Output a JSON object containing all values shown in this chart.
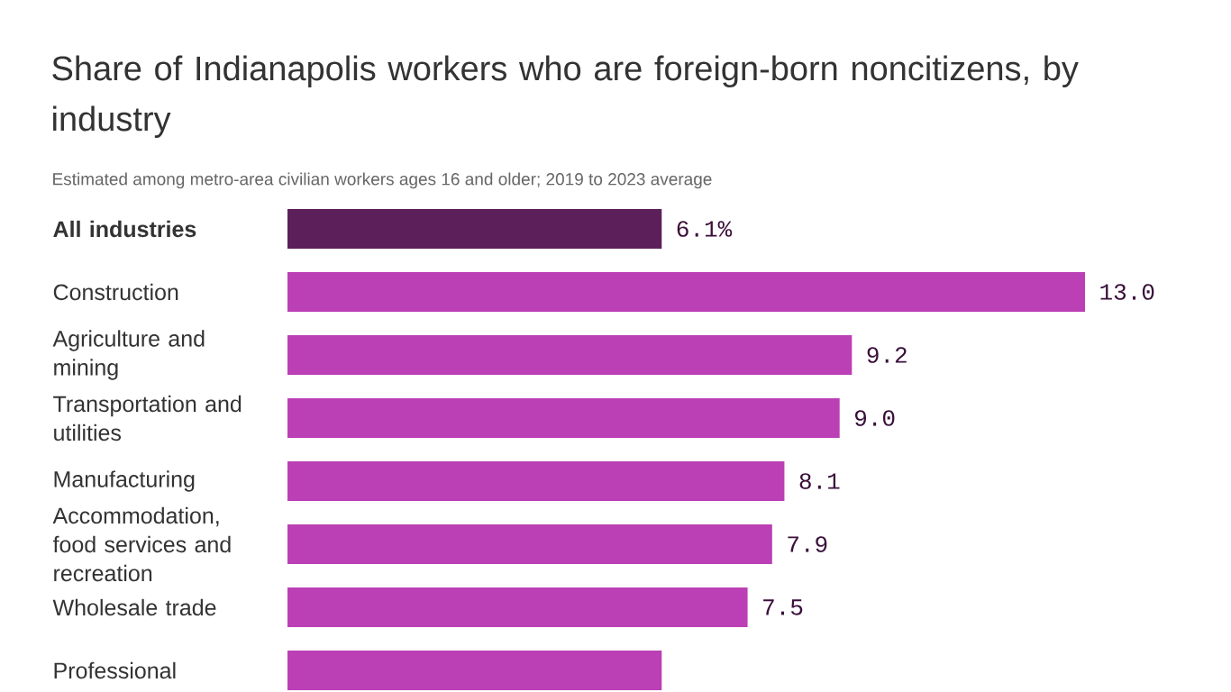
{
  "chart_data": {
    "type": "bar",
    "orientation": "horizontal",
    "title": "Share of Indianapolis workers who are foreign-born noncitizens, by industry",
    "subtitle": "Estimated among metro-area civilian workers ages 16 and older; 2019 to 2023 average",
    "categories": [
      "All industries",
      "Construction",
      "Agriculture and mining",
      "Transportation and utilities",
      "Manufacturing",
      "Accommodation, food services and recreation",
      "Wholesale trade",
      "Professional"
    ],
    "values": [
      6.1,
      13.0,
      9.2,
      9.0,
      8.1,
      7.9,
      7.5,
      6.1
    ],
    "colors": [
      "#5c1f5a",
      "#bb3fb5",
      "#bb3fb5",
      "#bb3fb5",
      "#bb3fb5",
      "#bb3fb5",
      "#bb3fb5",
      "#bb3fb5"
    ],
    "value_labels": [
      "6.1%",
      "13.0",
      "9.2",
      "9.0",
      "8.1",
      "7.9",
      "7.5",
      null
    ]
  }
}
